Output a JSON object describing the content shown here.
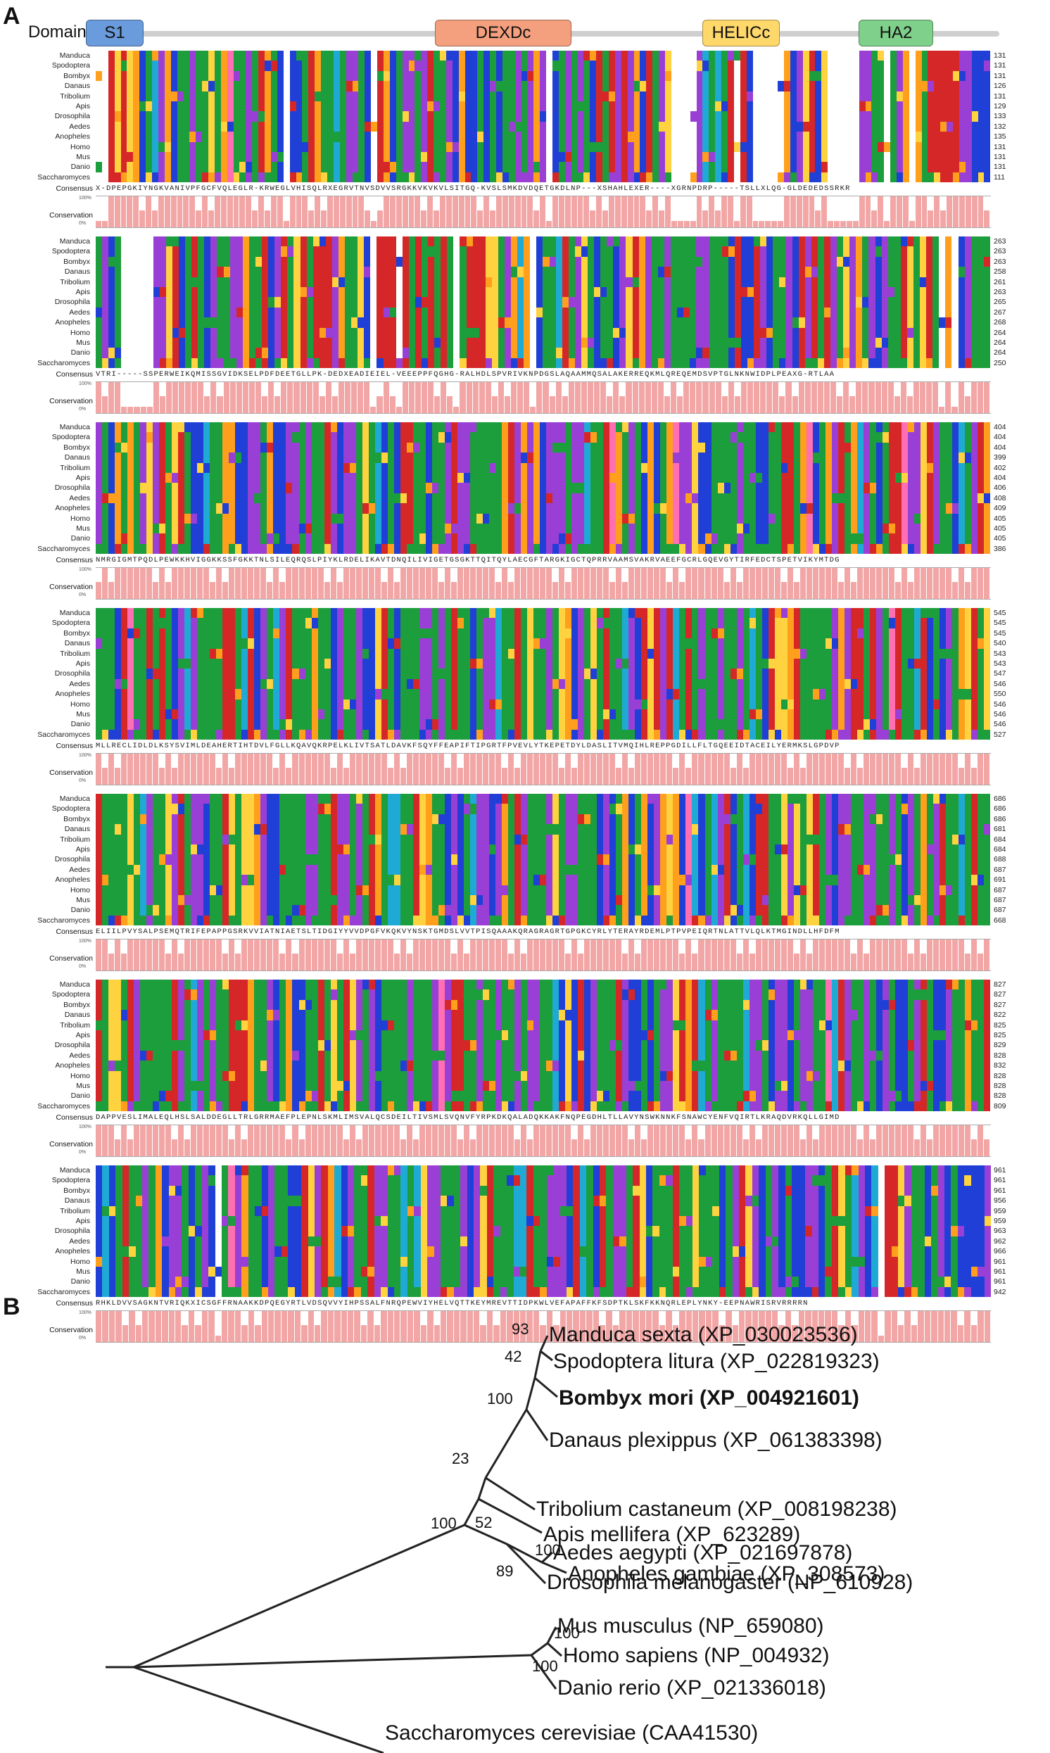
{
  "panels": {
    "a": "A",
    "b": "B"
  },
  "domains": {
    "label": "Domains",
    "items": [
      {
        "name": "S1",
        "color": "#6a9bdc"
      },
      {
        "name": "DEXDc",
        "color": "#f4a07e"
      },
      {
        "name": "HELICc",
        "color": "#ffd86b"
      },
      {
        "name": "HA2",
        "color": "#7fd08a"
      }
    ]
  },
  "alignment": {
    "species": [
      "Manduca",
      "Spodoptera",
      "Bombyx",
      "Danaus",
      "Tribolium",
      "Apis",
      "Drosophila",
      "Aedes",
      "Anopheles",
      "Homo",
      "Mus",
      "Danio",
      "Saccharomyces"
    ],
    "consensus_label": "Consensus",
    "conservation_label": "Conservation",
    "pct_top": "100%",
    "pct_bottom": "0%",
    "blocks": [
      {
        "end_positions": [
          "131",
          "131",
          "131",
          "126",
          "131",
          "129",
          "133",
          "132",
          "135",
          "131",
          "131",
          "131",
          "111"
        ],
        "consensus": "X-DPEPGKIYNGKVANIVPFGCFVQLEGLR-KRWEGLVHISQLRXEGRVTNVSDVVSRGKKVKVKVLSITGQ-KVSLSMKDVDQETGKDLNP---XSHAHLEXER----XGRNPDRP-----TSLLXLQG-GLDEDEDSSRKR"
      },
      {
        "end_positions": [
          "263",
          "263",
          "263",
          "258",
          "261",
          "263",
          "265",
          "267",
          "268",
          "264",
          "264",
          "264",
          "250"
        ],
        "consensus": "VTRI-----SSPERWEIKQMISSGVIDKSELPDFDEETGLLPK-DEDXEADIEIEL-VEEEPPFQGHG-RALHDLSPVRIVKNPDGSLAQAAMMQSALAKERREQKMLQREQEMDSVPTGLNKNWIDPLPEAXG-RTLAA"
      },
      {
        "end_positions": [
          "404",
          "404",
          "404",
          "399",
          "402",
          "404",
          "406",
          "408",
          "409",
          "405",
          "405",
          "405",
          "386"
        ],
        "consensus": "NMRGIGMTPQDLPEWKKHVIGGKKSSFGKKTNLSILEQRQSLPIYKLRDELIKAVTDNQILIVIGETGSGKTTQITQYLAECGFTARGKIGCTQPRRVAAMSVAKRVAEEFGCRLGQEVGYTIRFEDCTSPETVIKYMTDG"
      },
      {
        "end_positions": [
          "545",
          "545",
          "545",
          "540",
          "543",
          "543",
          "547",
          "546",
          "550",
          "546",
          "546",
          "546",
          "527"
        ],
        "consensus": "MLLRECLIDLDLKSYSVIMLDEAHERTIHTDVLFGLLKQAVQKRPELKLIVTSATLDAVKFSQYFFEAPIFTIPGRTFPVEVLYTKEPETDYLDASLITVMQIHLREPPGDILLFLTGQEEIDTACEILYERMKSLGPDVP"
      },
      {
        "end_positions": [
          "686",
          "686",
          "686",
          "681",
          "684",
          "684",
          "688",
          "687",
          "691",
          "687",
          "687",
          "687",
          "668"
        ],
        "consensus": "ELIILPVYSALPSEMQTRIFEPAPPGSRKVVIATNIAETSLTIDGIYYVVDPGFVKQKVYNSKTGMDSLVVTPISQAAAKQRAGRAGRTGPGKCYRLYTERAYRDEMLPTPVPEIQRTNLATTVLQLKTMGINDLLHFDFM"
      },
      {
        "end_positions": [
          "827",
          "827",
          "827",
          "822",
          "825",
          "825",
          "829",
          "828",
          "832",
          "828",
          "828",
          "828",
          "809"
        ],
        "consensus": "DAPPVESLIMALEQLHSLSALDDEGLLTRLGRRMAEFPLEPNLSKMLIMSVALQCSDEILTIVSMLSVQNVFYRPKDKQALADQKKAKFNQPEGDHLTLLAVYNSWKNNKFSNAWCYENFVQIRTLKRAQDVRKQLLGIMD"
      },
      {
        "end_positions": [
          "961",
          "961",
          "961",
          "956",
          "959",
          "959",
          "963",
          "962",
          "966",
          "961",
          "961",
          "961",
          "942"
        ],
        "consensus": "RHKLDVVSAGKNTVRIQKXICSGFFRNAAKKDPQEGYRTLVDSQVVYIHPSSALFNRQPEWVIYHELVQTTKEYMREVTTIDPKWLVEFAPAFFKFSDPTKLSKFKKNQRLEPLYNKY-EEPNAWRISRVRRRRN"
      }
    ]
  },
  "tree": {
    "taxa": [
      "Manduca sexta (XP_030023536)",
      "Spodoptera litura (XP_022819323)",
      "Bombyx mori (XP_004921601)",
      "Danaus plexippus (XP_061383398)",
      "Tribolium castaneum (XP_008198238)",
      "Apis mellifera (XP_623289)",
      "Aedes aegypti (XP_021697878)",
      "Anopheles gambiae (XP_308573)",
      "Drosophila melanogaster (NP_610928)",
      "Mus musculus (NP_659080)",
      "Homo sapiens (NP_004932)",
      "Danio rerio (XP_021336018)",
      "Saccharomyces cerevisiae (CAA41530)"
    ],
    "bootstrap": [
      "93",
      "42",
      "100",
      "23",
      "100",
      "52",
      "100",
      "89",
      "100",
      "100"
    ]
  }
}
